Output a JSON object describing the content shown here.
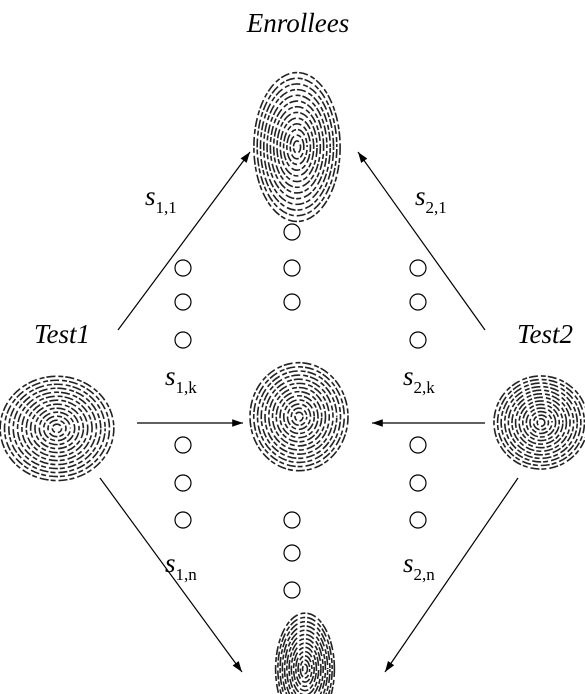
{
  "title": "Enrollees",
  "tests": [
    {
      "label": "Test1"
    },
    {
      "label": "Test2"
    }
  ],
  "edges": [
    {
      "symbol": "s",
      "subscript": "1,1"
    },
    {
      "symbol": "s",
      "subscript": "2,1"
    },
    {
      "symbol": "s",
      "subscript": "1,k"
    },
    {
      "symbol": "s",
      "subscript": "2,k"
    },
    {
      "symbol": "s",
      "subscript": "1,n"
    },
    {
      "symbol": "s",
      "subscript": "2,n"
    }
  ]
}
